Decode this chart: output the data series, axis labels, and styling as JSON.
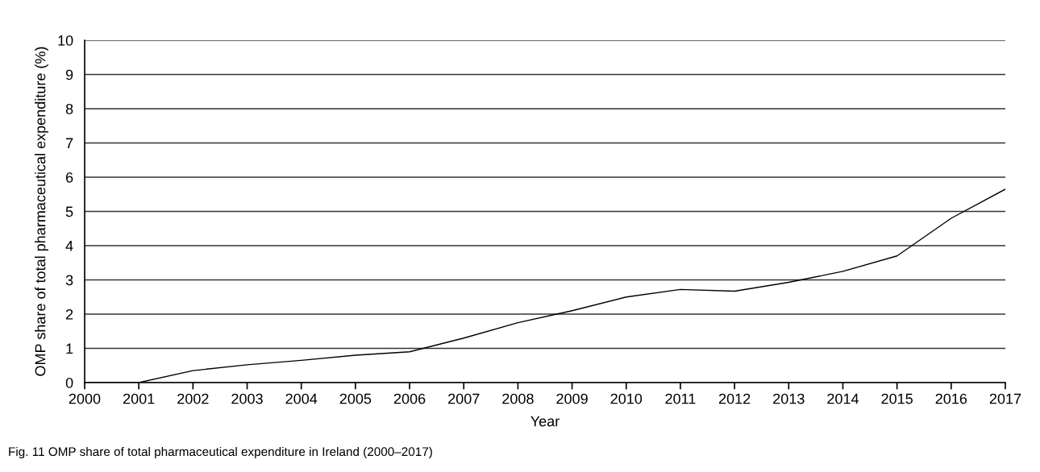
{
  "chart_data": {
    "type": "line",
    "xlabel": "Year",
    "ylabel": "OMP share of total pharmaceutical expenditure (%)",
    "x": [
      2000,
      2001,
      2002,
      2003,
      2004,
      2005,
      2006,
      2007,
      2008,
      2009,
      2010,
      2011,
      2012,
      2013,
      2014,
      2015,
      2016,
      2017
    ],
    "series": [
      {
        "color": "#000000",
        "values": [
          0,
          0,
          0.35,
          0.52,
          0.65,
          0.8,
          0.9,
          1.3,
          1.75,
          2.1,
          2.5,
          2.72,
          2.67,
          2.93,
          3.25,
          3.7,
          4.8,
          5.65
        ]
      }
    ],
    "xlim": [
      2000,
      2017
    ],
    "xticks": [
      2000,
      2001,
      2002,
      2003,
      2004,
      2005,
      2006,
      2007,
      2008,
      2009,
      2010,
      2011,
      2012,
      2013,
      2014,
      2015,
      2016,
      2017
    ],
    "ylim": [
      0,
      10
    ],
    "yticks": [
      0,
      1,
      2,
      3,
      4,
      5,
      6,
      7,
      8,
      9,
      10
    ],
    "grid": "y",
    "legend": false,
    "marker": "none",
    "line_style": "solid",
    "annotations": [
      "Fig. 11 OMP share of total pharmaceutical expenditure in Ireland (2000–2017)"
    ]
  }
}
